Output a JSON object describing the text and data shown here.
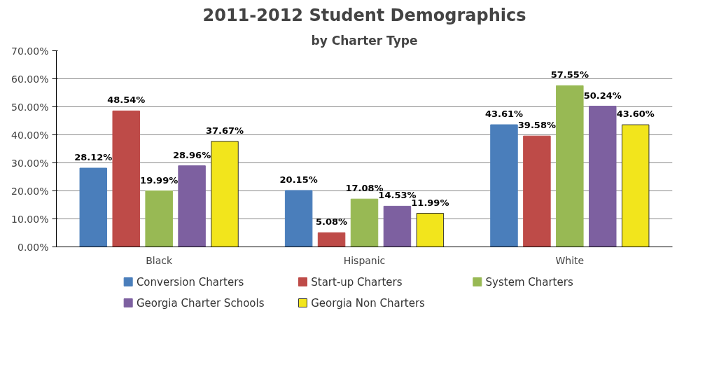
{
  "chart_data": {
    "type": "bar",
    "title": "2011-2012 Student Demographics",
    "subtitle": "by Charter Type",
    "categories": [
      "Black",
      "Hispanic",
      "White"
    ],
    "series": [
      {
        "name": "Conversion Charters",
        "color": "#4a7ebb",
        "values": [
          28.12,
          20.15,
          43.61
        ],
        "value_labels": [
          "28.12%",
          "20.15%",
          "43.61%"
        ]
      },
      {
        "name": "Start-up Charters",
        "color": "#be4b48",
        "values": [
          48.54,
          5.08,
          39.58
        ],
        "value_labels": [
          "48.54%",
          "5.08%",
          "39.58%"
        ]
      },
      {
        "name": "System Charters",
        "color": "#98b954",
        "values": [
          19.99,
          17.08,
          57.55
        ],
        "value_labels": [
          "19.99%",
          "17.08%",
          "57.55%"
        ]
      },
      {
        "name": "Georgia Charter Schools",
        "color": "#7d60a0",
        "values": [
          28.96,
          14.53,
          50.24
        ],
        "value_labels": [
          "28.96%",
          "14.53%",
          "50.24%"
        ]
      },
      {
        "name": "Georgia Non Charters",
        "color": "#f2e51c",
        "values": [
          37.67,
          11.99,
          43.6
        ],
        "value_labels": [
          "37.67%",
          "11.99%",
          "43.60%"
        ]
      }
    ],
    "ylim": [
      0,
      70
    ],
    "yticks": [
      {
        "value": 0,
        "label": "0.00%"
      },
      {
        "value": 10,
        "label": "10.00%"
      },
      {
        "value": 20,
        "label": "20.00%"
      },
      {
        "value": 30,
        "label": "30.00%"
      },
      {
        "value": 40,
        "label": "40.00%"
      },
      {
        "value": 50,
        "label": "50.00%"
      },
      {
        "value": 60,
        "label": "60.00%"
      },
      {
        "value": 70,
        "label": "70.00%"
      }
    ],
    "grid": "y",
    "legend": "bottom"
  }
}
